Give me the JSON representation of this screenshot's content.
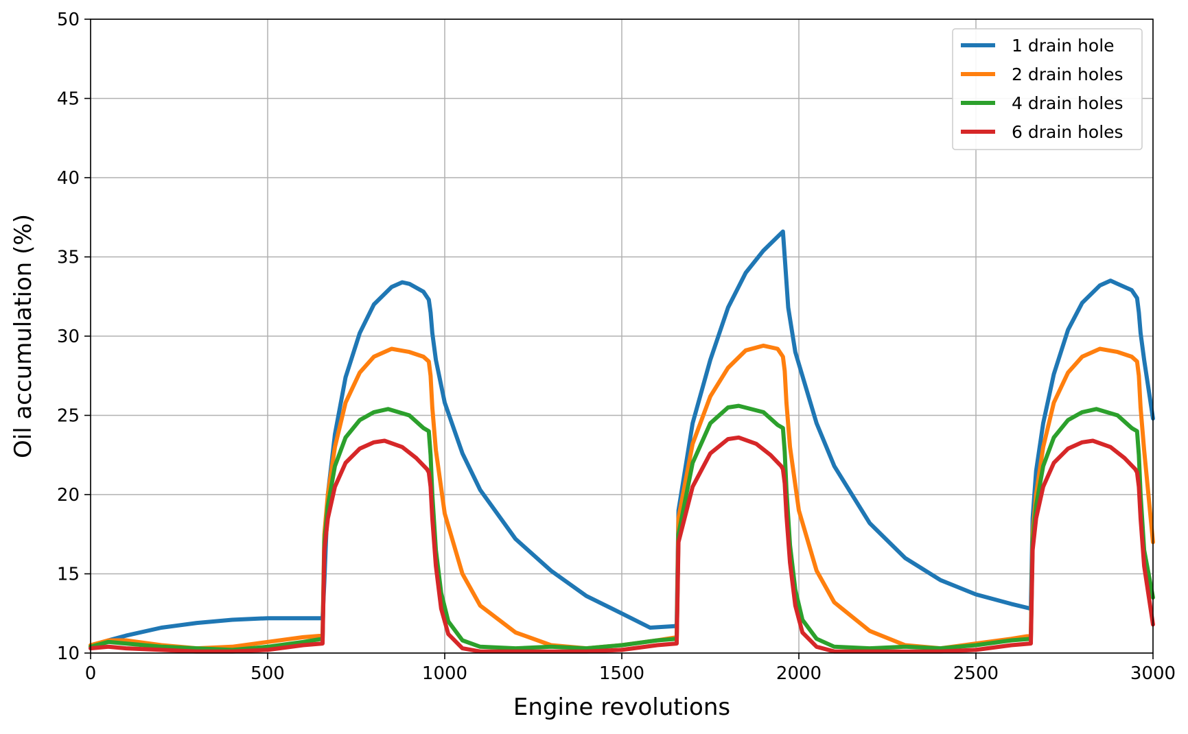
{
  "chart_data": {
    "type": "line",
    "title": "",
    "xlabel": "Engine revolutions",
    "ylabel": "Oil accumulation (%)",
    "xlim": [
      0,
      3000
    ],
    "ylim": [
      10,
      50
    ],
    "xticks": [
      0,
      500,
      1000,
      1500,
      2000,
      2500,
      3000
    ],
    "yticks": [
      10,
      15,
      20,
      25,
      30,
      35,
      40,
      45,
      50
    ],
    "grid": true,
    "legend_position": "top-right",
    "series": [
      {
        "name": "1 drain hole",
        "color": "#1f77b4",
        "x": [
          0,
          50,
          100,
          200,
          300,
          400,
          500,
          600,
          650,
          655,
          660,
          670,
          690,
          720,
          760,
          800,
          850,
          880,
          900,
          940,
          955,
          960,
          965,
          975,
          1000,
          1050,
          1100,
          1200,
          1300,
          1400,
          1500,
          1580,
          1650,
          1655,
          1660,
          1700,
          1750,
          1800,
          1850,
          1900,
          1955,
          1960,
          1970,
          1990,
          2050,
          2100,
          2200,
          2300,
          2400,
          2500,
          2600,
          2655,
          2660,
          2670,
          2690,
          2720,
          2760,
          2800,
          2850,
          2880,
          2900,
          2940,
          2955,
          2960,
          2965,
          2975,
          3000
        ],
        "y": [
          10.3,
          10.8,
          11.1,
          11.6,
          11.9,
          12.1,
          12.2,
          12.2,
          12.2,
          12.2,
          14.5,
          20.0,
          23.8,
          27.4,
          30.2,
          32.0,
          33.1,
          33.4,
          33.3,
          32.8,
          32.3,
          31.5,
          30.2,
          28.5,
          25.8,
          22.6,
          20.3,
          17.2,
          15.2,
          13.6,
          12.5,
          11.6,
          11.7,
          11.8,
          19.0,
          24.5,
          28.5,
          31.8,
          34.0,
          35.4,
          36.6,
          35.0,
          31.8,
          29.0,
          24.5,
          21.8,
          18.2,
          16.0,
          14.6,
          13.7,
          13.1,
          12.8,
          18.5,
          21.5,
          24.5,
          27.6,
          30.4,
          32.1,
          33.2,
          33.5,
          33.3,
          32.9,
          32.4,
          31.5,
          30.2,
          28.5,
          24.8
        ]
      },
      {
        "name": "2 drain holes",
        "color": "#ff7f0e",
        "x": [
          0,
          50,
          100,
          200,
          300,
          400,
          500,
          600,
          655,
          660,
          670,
          690,
          720,
          760,
          800,
          850,
          900,
          940,
          955,
          960,
          965,
          975,
          1000,
          1050,
          1100,
          1200,
          1300,
          1400,
          1500,
          1600,
          1655,
          1660,
          1700,
          1750,
          1800,
          1850,
          1900,
          1940,
          1955,
          1960,
          1965,
          1975,
          2000,
          2050,
          2100,
          2200,
          2300,
          2400,
          2500,
          2600,
          2655,
          2660,
          2670,
          2690,
          2720,
          2760,
          2800,
          2850,
          2900,
          2940,
          2955,
          2960,
          2965,
          2975,
          3000
        ],
        "y": [
          10.5,
          10.8,
          10.8,
          10.5,
          10.3,
          10.4,
          10.7,
          11.0,
          11.1,
          17.5,
          20.0,
          23.0,
          25.8,
          27.7,
          28.7,
          29.2,
          29.0,
          28.7,
          28.4,
          27.5,
          25.5,
          22.8,
          18.8,
          15.0,
          13.0,
          11.3,
          10.5,
          10.3,
          10.5,
          10.8,
          11.0,
          18.5,
          23.2,
          26.2,
          28.0,
          29.1,
          29.4,
          29.2,
          28.7,
          27.8,
          25.8,
          23.0,
          19.0,
          15.2,
          13.2,
          11.4,
          10.5,
          10.3,
          10.6,
          10.9,
          11.1,
          17.5,
          20.0,
          23.0,
          25.8,
          27.7,
          28.7,
          29.2,
          29.0,
          28.7,
          28.4,
          27.5,
          25.5,
          22.8,
          17.0
        ]
      },
      {
        "name": "4 drain holes",
        "color": "#2ca02c",
        "x": [
          0,
          50,
          100,
          200,
          300,
          400,
          500,
          600,
          655,
          660,
          670,
          690,
          720,
          760,
          800,
          840,
          900,
          940,
          955,
          960,
          965,
          975,
          990,
          1010,
          1050,
          1100,
          1200,
          1300,
          1400,
          1500,
          1600,
          1655,
          1660,
          1700,
          1750,
          1800,
          1830,
          1900,
          1940,
          1955,
          1960,
          1965,
          1975,
          1990,
          2010,
          2050,
          2100,
          2200,
          2300,
          2400,
          2500,
          2600,
          2655,
          2660,
          2670,
          2690,
          2720,
          2760,
          2800,
          2840,
          2900,
          2940,
          2955,
          2960,
          2965,
          2975,
          3000
        ],
        "y": [
          10.4,
          10.7,
          10.6,
          10.4,
          10.3,
          10.2,
          10.4,
          10.7,
          10.9,
          17.0,
          19.3,
          21.8,
          23.6,
          24.7,
          25.2,
          25.4,
          25.0,
          24.2,
          24.0,
          22.5,
          20.0,
          16.5,
          13.8,
          12.0,
          10.8,
          10.4,
          10.3,
          10.4,
          10.3,
          10.5,
          10.8,
          10.9,
          17.5,
          22.0,
          24.5,
          25.5,
          25.6,
          25.2,
          24.4,
          24.2,
          22.7,
          20.3,
          16.8,
          14.0,
          12.1,
          10.9,
          10.4,
          10.3,
          10.4,
          10.3,
          10.5,
          10.8,
          10.9,
          17.0,
          19.3,
          21.8,
          23.6,
          24.7,
          25.2,
          25.4,
          25.0,
          24.2,
          24.0,
          22.5,
          20.0,
          16.5,
          13.5
        ]
      },
      {
        "name": "6 drain holes",
        "color": "#d62728",
        "x": [
          0,
          50,
          100,
          200,
          300,
          400,
          500,
          600,
          655,
          660,
          670,
          690,
          720,
          760,
          800,
          830,
          880,
          920,
          950,
          955,
          960,
          965,
          975,
          990,
          1010,
          1050,
          1100,
          1200,
          1300,
          1400,
          1500,
          1600,
          1655,
          1660,
          1700,
          1750,
          1800,
          1830,
          1880,
          1920,
          1950,
          1955,
          1960,
          1965,
          1975,
          1990,
          2010,
          2050,
          2100,
          2200,
          2300,
          2400,
          2500,
          2600,
          2655,
          2660,
          2670,
          2690,
          2720,
          2760,
          2800,
          2830,
          2880,
          2920,
          2950,
          2955,
          2960,
          2965,
          2975,
          3000
        ],
        "y": [
          10.3,
          10.4,
          10.3,
          10.2,
          10.1,
          10.1,
          10.2,
          10.5,
          10.6,
          16.5,
          18.5,
          20.5,
          22.0,
          22.9,
          23.3,
          23.4,
          23.0,
          22.3,
          21.6,
          21.4,
          20.5,
          18.5,
          15.5,
          12.8,
          11.2,
          10.3,
          10.1,
          10.1,
          10.1,
          10.1,
          10.2,
          10.5,
          10.6,
          17.0,
          20.5,
          22.6,
          23.5,
          23.6,
          23.2,
          22.5,
          21.8,
          21.6,
          20.7,
          18.7,
          15.7,
          13.0,
          11.3,
          10.4,
          10.1,
          10.1,
          10.1,
          10.1,
          10.2,
          10.5,
          10.6,
          16.5,
          18.5,
          20.5,
          22.0,
          22.9,
          23.3,
          23.4,
          23.0,
          22.3,
          21.6,
          21.4,
          20.5,
          18.5,
          15.5,
          11.8
        ]
      }
    ]
  }
}
